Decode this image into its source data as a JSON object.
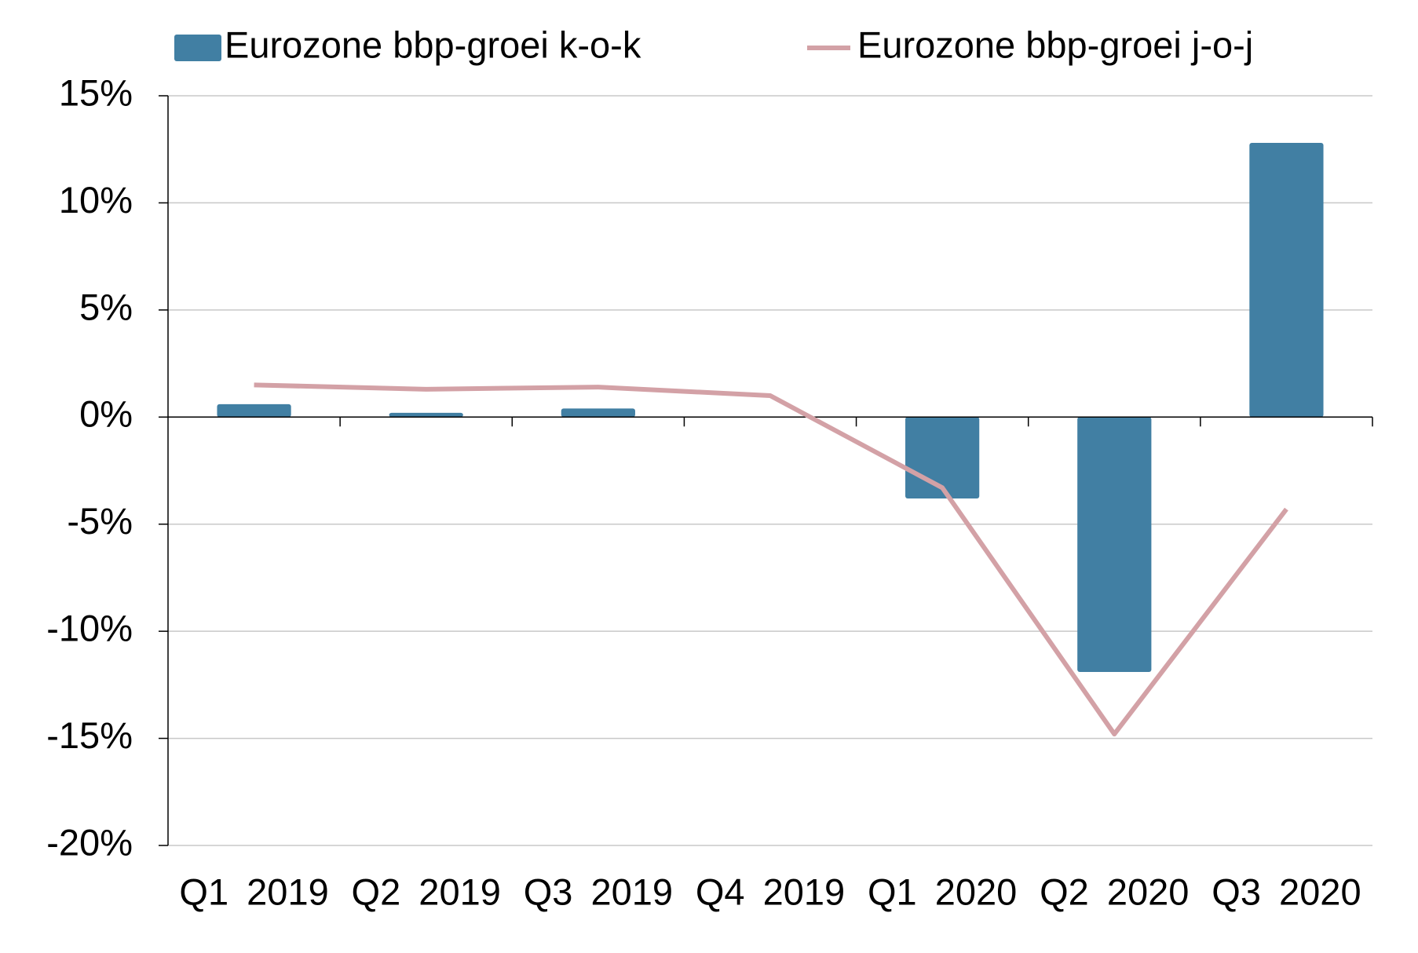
{
  "chart_data": {
    "type": "bar-line",
    "categories": [
      "Q1 2019",
      "Q2 2019",
      "Q3 2019",
      "Q4 2019",
      "Q1 2020",
      "Q2 2020",
      "Q3 2020"
    ],
    "series": [
      {
        "name": "Eurozone bbp-groei k-o-k",
        "type": "bar",
        "color": "#417fa3",
        "values": [
          0.6,
          0.2,
          0.4,
          0.0,
          -3.8,
          -11.9,
          12.8
        ]
      },
      {
        "name": "Eurozone bbp-groei j-o-j",
        "type": "line",
        "color": "#d3a1a6",
        "values": [
          1.5,
          1.3,
          1.4,
          1.0,
          -3.3,
          -14.8,
          -4.3
        ]
      }
    ],
    "ylim": [
      -20,
      15
    ],
    "yticks": [
      {
        "value": -20,
        "label": "-20%"
      },
      {
        "value": -15,
        "label": "-15%"
      },
      {
        "value": -10,
        "label": "-10%"
      },
      {
        "value": -5,
        "label": "-5%"
      },
      {
        "value": 0,
        "label": "0%"
      },
      {
        "value": 5,
        "label": "5%"
      },
      {
        "value": 10,
        "label": "10%"
      },
      {
        "value": 15,
        "label": "15%"
      }
    ],
    "grid": true,
    "legend": "top"
  }
}
